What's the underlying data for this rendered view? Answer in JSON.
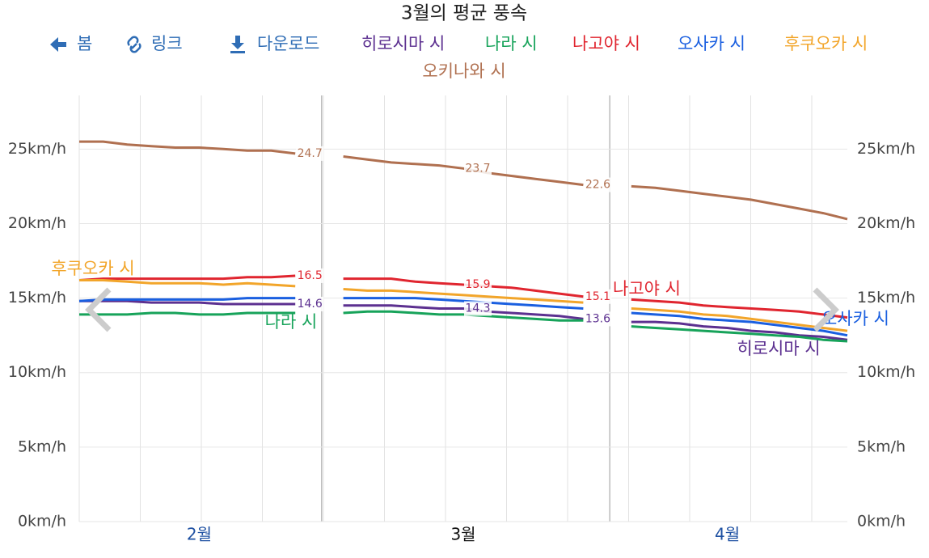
{
  "chart_data": {
    "type": "line",
    "title": "3월의 평균 풍속",
    "controls": [
      "봄",
      "링크",
      "다운로드"
    ],
    "categories": [
      null,
      null,
      null,
      null,
      null,
      "2월",
      null,
      null,
      null,
      null,
      null,
      null,
      null,
      null,
      null,
      null,
      "3월",
      null,
      null,
      null,
      null,
      null,
      null,
      null,
      null,
      null,
      null,
      "4월",
      null,
      null,
      null,
      null,
      null
    ],
    "ylim": [
      0,
      28.6
    ],
    "yticks": [
      {
        "value": 0,
        "label": "0km/h"
      },
      {
        "value": 5,
        "label": "5km/h"
      },
      {
        "value": 10,
        "label": "10km/h"
      },
      {
        "value": 15,
        "label": "15km/h"
      },
      {
        "value": 20,
        "label": "20km/h"
      },
      {
        "value": 25,
        "label": "25km/h"
      }
    ],
    "grid": true,
    "series": [
      {
        "name": "히로시마 시",
        "color": "#5c3090",
        "values": [
          14.8,
          14.8,
          14.8,
          14.7,
          14.7,
          14.7,
          14.6,
          14.6,
          14.6,
          14.6,
          null,
          14.5,
          14.5,
          14.5,
          14.4,
          14.3,
          14.3,
          14.1,
          14.0,
          13.9,
          13.8,
          13.6,
          null,
          13.4,
          13.4,
          13.3,
          13.1,
          13.0,
          12.8,
          12.7,
          12.5,
          12.4,
          12.2
        ],
        "value_labels": [
          null,
          null,
          null,
          null,
          null,
          null,
          null,
          null,
          null,
          "14.6",
          null,
          null,
          null,
          null,
          null,
          null,
          "14.3",
          null,
          null,
          null,
          null,
          "13.6",
          null,
          null,
          null,
          null,
          null,
          null,
          null,
          null,
          null,
          null,
          null
        ]
      },
      {
        "name": "나라 시",
        "color": "#17a35a",
        "values": [
          13.9,
          13.9,
          13.9,
          14.0,
          14.0,
          13.9,
          13.9,
          14.0,
          14.0,
          14.0,
          null,
          14.0,
          14.1,
          14.1,
          14.0,
          13.9,
          13.9,
          13.8,
          13.7,
          13.6,
          13.5,
          13.5,
          null,
          13.1,
          13.0,
          12.9,
          12.8,
          12.7,
          12.6,
          12.5,
          12.4,
          12.2,
          12.1
        ]
      },
      {
        "name": "나고야 시",
        "color": "#e0252f",
        "values": [
          16.2,
          16.3,
          16.3,
          16.3,
          16.3,
          16.3,
          16.3,
          16.4,
          16.4,
          16.5,
          null,
          16.3,
          16.3,
          16.3,
          16.1,
          16.0,
          15.9,
          15.8,
          15.7,
          15.5,
          15.3,
          15.1,
          null,
          14.9,
          14.8,
          14.7,
          14.5,
          14.4,
          14.3,
          14.2,
          14.1,
          13.9,
          13.7
        ],
        "value_labels": [
          null,
          null,
          null,
          null,
          null,
          null,
          null,
          null,
          null,
          "16.5",
          null,
          null,
          null,
          null,
          null,
          null,
          "15.9",
          null,
          null,
          null,
          null,
          "15.1",
          null,
          null,
          null,
          null,
          null,
          null,
          null,
          null,
          null,
          null,
          null
        ]
      },
      {
        "name": "오사카 시",
        "color": "#1a5fe0",
        "values": [
          14.8,
          14.9,
          14.9,
          14.9,
          14.9,
          14.9,
          14.9,
          15.0,
          15.0,
          15.0,
          null,
          15.0,
          15.0,
          15.0,
          15.0,
          14.9,
          14.8,
          14.7,
          14.6,
          14.5,
          14.4,
          14.3,
          null,
          14.0,
          13.9,
          13.8,
          13.6,
          13.5,
          13.4,
          13.2,
          13.0,
          12.8,
          12.5
        ]
      },
      {
        "name": "후쿠오카 시",
        "color": "#f2a52a",
        "values": [
          16.2,
          16.2,
          16.1,
          16.0,
          16.0,
          16.0,
          15.9,
          16.0,
          15.9,
          15.8,
          null,
          15.6,
          15.5,
          15.5,
          15.4,
          15.3,
          15.2,
          15.1,
          15.0,
          14.9,
          14.8,
          14.7,
          null,
          14.3,
          14.2,
          14.1,
          13.9,
          13.8,
          13.6,
          13.4,
          13.2,
          13.0,
          12.8
        ]
      },
      {
        "name": "오키나와 시",
        "color": "#b07050",
        "values": [
          25.5,
          25.5,
          25.3,
          25.2,
          25.1,
          25.1,
          25.0,
          24.9,
          24.9,
          24.7,
          null,
          24.5,
          24.3,
          24.1,
          24.0,
          23.9,
          23.7,
          23.4,
          23.2,
          23.0,
          22.8,
          22.6,
          null,
          22.5,
          22.4,
          22.2,
          22.0,
          21.8,
          21.6,
          21.3,
          21.0,
          20.7,
          20.3
        ],
        "value_labels": [
          null,
          null,
          null,
          null,
          null,
          null,
          null,
          null,
          null,
          "24.7",
          null,
          null,
          null,
          null,
          null,
          null,
          "23.7",
          null,
          null,
          null,
          null,
          "22.6",
          null,
          null,
          null,
          null,
          null,
          null,
          null,
          null,
          null,
          null,
          null
        ]
      }
    ]
  }
}
